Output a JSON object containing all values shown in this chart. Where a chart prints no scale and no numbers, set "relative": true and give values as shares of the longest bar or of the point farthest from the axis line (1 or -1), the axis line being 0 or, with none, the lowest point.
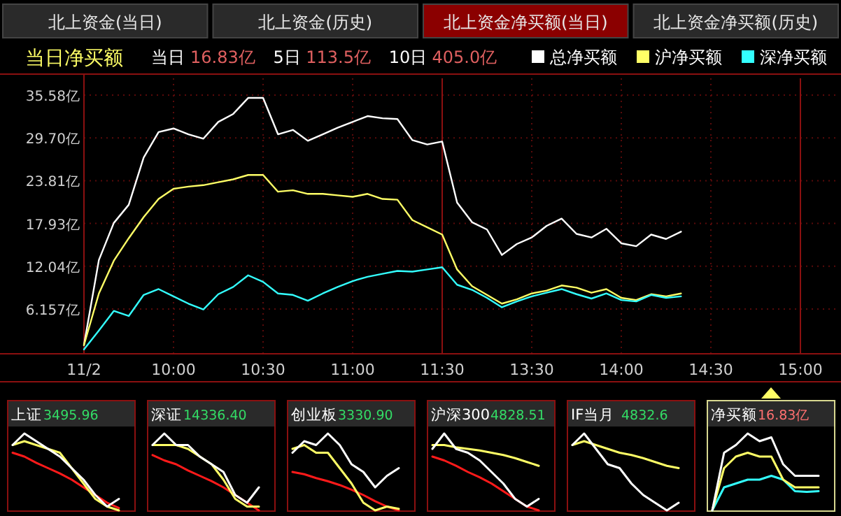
{
  "chart_data": [
    {
      "type": "other",
      "annotations": [
        "北上资金(当日)",
        "北上资金(历史)",
        "北上资金净买额(当日)",
        "北上资金净买额(历史)"
      ]
    },
    {
      "type": "line",
      "title": "当日净买额",
      "annotations": [
        "当日",
        "16.83亿",
        "5日",
        "113.5亿",
        "10日",
        "405.0亿"
      ],
      "legend": "top right",
      "grid": true,
      "categories": [
        "11/2",
        null,
        null,
        null,
        null,
        null,
        "10:00",
        null,
        null,
        null,
        null,
        null,
        "10:30",
        null,
        null,
        null,
        null,
        null,
        "11:00",
        null,
        null,
        null,
        null,
        null,
        "11:30",
        null,
        null,
        null,
        null,
        null,
        "13:30",
        null,
        null,
        null,
        null,
        null,
        "14:00",
        null,
        null,
        null,
        null,
        null,
        "14:30",
        null,
        null,
        null,
        null,
        null,
        "15:00"
      ],
      "ylim": [
        0,
        37.9
      ],
      "yticks": [
        {
          "value": 6.157,
          "label": "6.157亿"
        },
        {
          "value": 12.04,
          "label": "12.04亿"
        },
        {
          "value": 17.93,
          "label": "17.93亿"
        },
        {
          "value": 23.81,
          "label": "23.81亿"
        },
        {
          "value": 29.7,
          "label": "29.70亿"
        },
        {
          "value": 35.58,
          "label": "35.58亿"
        }
      ],
      "series": [
        {
          "name": "总净买额",
          "color": "#ffffff",
          "values": [
            1.2,
            12.9,
            18.0,
            20.5,
            27.0,
            30.5,
            31.0,
            30.2,
            29.6,
            31.9,
            33.0,
            35.2,
            35.2,
            30.2,
            30.8,
            29.3,
            30.2,
            31.1,
            31.9,
            32.7,
            32.4,
            32.3,
            29.4,
            28.8,
            29.2,
            20.8,
            18.1,
            17.1,
            13.6,
            15.1,
            16.0,
            17.6,
            18.6,
            16.5,
            16.0,
            17.2,
            15.2,
            14.8,
            16.4,
            15.8,
            16.8,
            null,
            null,
            null,
            null,
            null,
            null,
            null,
            null
          ]
        },
        {
          "name": "沪净买额",
          "color": "#ffff66",
          "values": [
            1.2,
            8.3,
            12.8,
            15.9,
            18.8,
            21.3,
            22.7,
            23.0,
            23.2,
            23.6,
            24.0,
            24.6,
            24.6,
            22.3,
            22.5,
            22.0,
            22.0,
            21.8,
            21.6,
            22.0,
            21.3,
            21.2,
            18.4,
            17.4,
            16.4,
            11.6,
            9.3,
            8.1,
            6.9,
            7.5,
            8.3,
            8.7,
            9.4,
            9.1,
            8.4,
            8.9,
            7.7,
            7.4,
            8.2,
            7.9,
            8.3,
            null,
            null,
            null,
            null,
            null,
            null,
            null,
            null
          ]
        },
        {
          "name": "深净买额",
          "color": "#33ffff",
          "values": [
            0.6,
            3.2,
            5.9,
            5.2,
            8.1,
            8.9,
            7.9,
            6.9,
            6.1,
            8.2,
            9.2,
            10.8,
            9.9,
            8.3,
            8.1,
            7.3,
            8.3,
            9.2,
            10.0,
            10.6,
            11.0,
            11.4,
            11.3,
            11.6,
            11.9,
            9.5,
            8.8,
            7.7,
            6.4,
            7.2,
            7.9,
            8.4,
            8.9,
            8.2,
            7.6,
            8.3,
            7.4,
            7.2,
            8.1,
            7.7,
            7.9,
            null,
            null,
            null,
            null,
            null,
            null,
            null,
            null
          ]
        }
      ]
    },
    {
      "type": "line",
      "relative": true,
      "title": "上证",
      "annotations": [
        "3495.96"
      ],
      "categories": [
        null,
        null,
        null,
        null,
        null,
        null,
        null,
        null,
        null,
        null
      ],
      "series": [
        {
          "color": "#ff1a1a",
          "values": [
            0.75,
            0.7,
            0.62,
            0.55,
            0.48,
            0.4,
            0.3,
            0.2,
            0.1,
            0.03
          ]
        },
        {
          "color": "#ffff66",
          "values": [
            0.85,
            0.9,
            0.85,
            0.8,
            0.75,
            0.55,
            0.35,
            0.15,
            0.05,
            0
          ]
        },
        {
          "color": "#ffffff",
          "values": [
            0.85,
            1,
            0.9,
            0.8,
            0.7,
            0.55,
            0.4,
            0.2,
            0.05,
            0.15
          ]
        }
      ]
    },
    {
      "type": "line",
      "relative": true,
      "title": "深证",
      "annotations": [
        "14336.40"
      ],
      "categories": [
        null,
        null,
        null,
        null,
        null,
        null,
        null,
        null,
        null,
        null
      ],
      "series": [
        {
          "color": "#ff1a1a",
          "values": [
            0.72,
            0.65,
            0.6,
            0.52,
            0.45,
            0.38,
            0.3,
            0.2,
            0.1,
            0
          ]
        },
        {
          "color": "#ffff66",
          "values": [
            0.85,
            0.85,
            0.85,
            0.8,
            0.7,
            0.6,
            0.4,
            0.15,
            0.05,
            0.05
          ]
        },
        {
          "color": "#ffffff",
          "values": [
            0.85,
            1,
            0.85,
            0.85,
            0.7,
            0.6,
            0.5,
            0.2,
            0.1,
            0.3
          ]
        }
      ]
    },
    {
      "type": "line",
      "relative": true,
      "title": "创业板",
      "annotations": [
        "3330.90"
      ],
      "categories": [
        null,
        null,
        null,
        null,
        null,
        null,
        null,
        null,
        null,
        null
      ],
      "series": [
        {
          "color": "#ff1a1a",
          "values": [
            0.5,
            0.47,
            0.42,
            0.38,
            0.33,
            0.27,
            0.2,
            0.12,
            0.05,
            0
          ]
        },
        {
          "color": "#ffff66",
          "values": [
            0.8,
            0.85,
            0.75,
            0.75,
            0.55,
            0.35,
            0.1,
            0,
            0.05,
            0.02
          ]
        },
        {
          "color": "#ffffff",
          "values": [
            0.75,
            0.9,
            0.85,
            1,
            0.85,
            0.6,
            0.5,
            0.3,
            0.45,
            0.55
          ]
        }
      ]
    },
    {
      "type": "line",
      "relative": true,
      "title": "沪深300",
      "annotations": [
        "4828.51"
      ],
      "categories": [
        null,
        null,
        null,
        null,
        null,
        null,
        null,
        null,
        null,
        null
      ],
      "series": [
        {
          "color": "#ff1a1a",
          "values": [
            0.7,
            0.65,
            0.58,
            0.5,
            0.43,
            0.35,
            0.25,
            0.15,
            0.05,
            0
          ]
        },
        {
          "color": "#ffff66",
          "values": [
            0.85,
            0.85,
            0.82,
            0.8,
            0.78,
            0.75,
            0.72,
            0.68,
            0.63,
            0.58
          ]
        },
        {
          "color": "#ffffff",
          "values": [
            0.8,
            1,
            0.8,
            0.75,
            0.65,
            0.5,
            0.35,
            0.15,
            0.05,
            0.15
          ]
        }
      ]
    },
    {
      "type": "line",
      "relative": true,
      "title": "IF当月",
      "annotations": [
        "4832.6"
      ],
      "categories": [
        null,
        null,
        null,
        null,
        null,
        null,
        null,
        null,
        null,
        null
      ],
      "series": [
        {
          "color": "#ffff66",
          "values": [
            0.85,
            0.9,
            0.85,
            0.8,
            0.75,
            0.72,
            0.68,
            0.63,
            0.58,
            0.55
          ]
        },
        {
          "color": "#ffffff",
          "values": [
            0.85,
            1,
            0.8,
            0.6,
            0.55,
            0.35,
            0.2,
            0.1,
            0,
            0.1
          ]
        }
      ]
    },
    {
      "type": "line",
      "relative": true,
      "title": "净买额",
      "annotations": [
        "16.83亿"
      ],
      "categories": [
        null,
        null,
        null,
        null,
        null,
        null,
        null,
        null,
        null,
        null
      ],
      "series": [
        {
          "color": "#33ffff",
          "values": [
            0,
            0.3,
            0.35,
            0.4,
            0.4,
            0.45,
            0.4,
            0.25,
            0.24,
            0.25
          ]
        },
        {
          "color": "#ffff66",
          "values": [
            0,
            0.55,
            0.7,
            0.75,
            0.7,
            0.7,
            0.4,
            0.3,
            0.3,
            0.3
          ]
        },
        {
          "color": "#ffffff",
          "values": [
            0,
            0.75,
            0.85,
            1,
            0.9,
            0.95,
            0.6,
            0.45,
            0.45,
            0.45
          ]
        }
      ]
    }
  ]
}
